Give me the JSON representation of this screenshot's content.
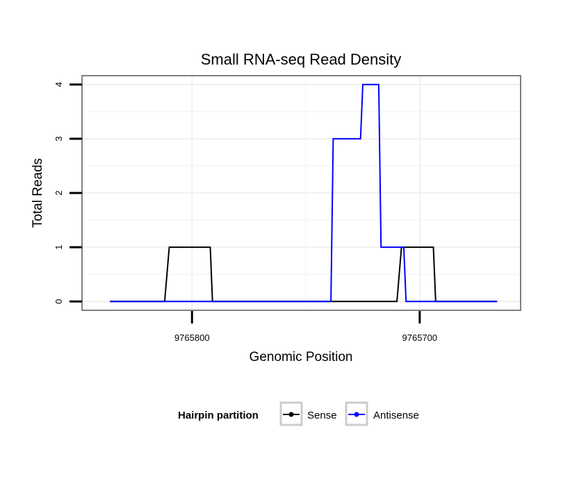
{
  "chart_data": {
    "type": "line",
    "title": "Small RNA-seq Read Density",
    "xlabel": "Genomic Position",
    "ylabel": "Total Reads",
    "x_reversed": true,
    "xlim": [
      9765848,
      9765656
    ],
    "ylim": [
      -0.15,
      4.15
    ],
    "x_ticks": [
      9765800,
      9765700
    ],
    "x_tick_labels": [
      "9765800",
      "9765700"
    ],
    "y_ticks": [
      0,
      1,
      2,
      3,
      4
    ],
    "y_tick_labels": [
      "0",
      "1",
      "2",
      "3",
      "4"
    ],
    "grid": true,
    "legend": {
      "title": "Hairpin partition",
      "position": "bottom",
      "entries": [
        "Sense",
        "Antisense"
      ]
    },
    "series": [
      {
        "name": "Sense",
        "color": "#000000",
        "points": [
          [
            9765836,
            0
          ],
          [
            9765812,
            0
          ],
          [
            9765810,
            1
          ],
          [
            9765792,
            1
          ],
          [
            9765791,
            0
          ],
          [
            9765710,
            0
          ],
          [
            9765708,
            1
          ],
          [
            9765694,
            1
          ],
          [
            9765693,
            0
          ],
          [
            9765666,
            0
          ]
        ]
      },
      {
        "name": "Antisense",
        "color": "#0000ff",
        "points": [
          [
            9765836,
            0
          ],
          [
            9765739,
            0
          ],
          [
            9765738,
            3
          ],
          [
            9765726,
            3
          ],
          [
            9765725,
            4
          ],
          [
            9765718,
            4
          ],
          [
            9765717,
            1
          ],
          [
            9765707,
            1
          ],
          [
            9765706,
            0
          ],
          [
            9765666,
            0
          ]
        ]
      }
    ]
  }
}
